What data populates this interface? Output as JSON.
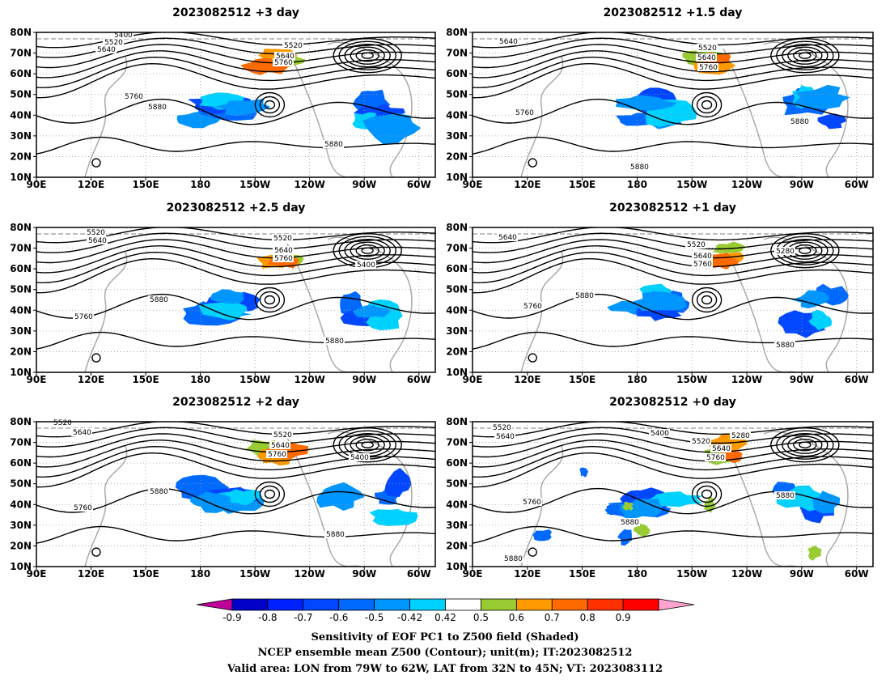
{
  "panels": [
    {
      "title": "2023082512  +3 day",
      "labels": [
        [
          "5400",
          152,
          45
        ],
        [
          "5520",
          140,
          54
        ],
        [
          "5640",
          131,
          63
        ],
        [
          "5520",
          362,
          58
        ],
        [
          "5640",
          352,
          71
        ],
        [
          "5760",
          350,
          79
        ],
        [
          "5760",
          165,
          121
        ],
        [
          "5880",
          194,
          134
        ],
        [
          "5880",
          412,
          180
        ]
      ]
    },
    {
      "title": "2023082512  +1.5 day",
      "labels": [
        [
          "5640",
          628,
          53
        ],
        [
          "5520",
          874,
          61
        ],
        [
          "5640",
          873,
          73
        ],
        [
          "5760",
          875,
          85
        ],
        [
          "5760",
          648,
          141
        ],
        [
          "5880",
          988,
          152
        ],
        [
          "5880",
          790,
          208
        ]
      ]
    },
    {
      "title": "2023082512  +2.5 day",
      "labels": [
        [
          "5520",
          118,
          289
        ],
        [
          "5640",
          120,
          299
        ],
        [
          "5520",
          349,
          296
        ],
        [
          "5640",
          350,
          311
        ],
        [
          "5760",
          350,
          321
        ],
        [
          "5400",
          452,
          329
        ],
        [
          "5880",
          196,
          372
        ],
        [
          "5760",
          103,
          393
        ],
        [
          "5880",
          413,
          423
        ]
      ]
    },
    {
      "title": "2023082512  +1 day",
      "labels": [
        [
          "5640",
          627,
          295
        ],
        [
          "5520",
          860,
          304
        ],
        [
          "5640",
          868,
          318
        ],
        [
          "5760",
          868,
          328
        ],
        [
          "5280",
          970,
          312
        ],
        [
          "5880",
          722,
          367
        ],
        [
          "5760",
          658,
          380
        ],
        [
          "5880",
          970,
          428
        ]
      ]
    },
    {
      "title": "2023082512  +2 day",
      "labels": [
        [
          "5520",
          77,
          524
        ],
        [
          "5640",
          101,
          536
        ],
        [
          "5520",
          349,
          539
        ],
        [
          "5640",
          346,
          552
        ],
        [
          "5760",
          342,
          563
        ],
        [
          "5400",
          444,
          567
        ],
        [
          "5880",
          196,
          609
        ],
        [
          "5760",
          102,
          629
        ],
        [
          "5880",
          414,
          662
        ]
      ]
    },
    {
      "title": "2023082512  +0 day",
      "labels": [
        [
          "5520",
          620,
          530
        ],
        [
          "5640",
          624,
          541
        ],
        [
          "5400",
          815,
          537
        ],
        [
          "5520",
          866,
          547
        ],
        [
          "5640",
          891,
          556
        ],
        [
          "5280",
          915,
          540
        ],
        [
          "5760",
          884,
          567
        ],
        [
          "5880",
          970,
          614
        ],
        [
          "5760",
          657,
          622
        ],
        [
          "5880",
          778,
          647
        ],
        [
          "5880",
          634,
          692
        ]
      ]
    }
  ],
  "lat_labels": [
    "80N",
    "70N",
    "60N",
    "50N",
    "40N",
    "30N",
    "20N",
    "10N"
  ],
  "lon_labels": [
    "90E",
    "120E",
    "150E",
    "180",
    "150W",
    "120W",
    "90W",
    "60W"
  ],
  "colorbar": {
    "ticks": [
      "-0.9",
      "-0.8",
      "-0.7",
      "-0.6",
      "-0.5",
      "-0.42",
      "0.42",
      "0.5",
      "0.6",
      "0.7",
      "0.8",
      "0.9"
    ],
    "colors": [
      "#c0009b",
      "#0000c8",
      "#0021ff",
      "#0047ff",
      "#006aff",
      "#0096ff",
      "#00d2ff",
      "#ffffff",
      "#99cc33",
      "#ff9900",
      "#ff6a00",
      "#ff3000",
      "#ff0000",
      "#ffa3d0"
    ]
  },
  "caption": {
    "line1": "Sensitivity of EOF PC1 to Z500 field (Shaded)",
    "line2": "NCEP ensemble mean Z500 (Contour); unit(m); IT:2023082512",
    "line3": "Valid area: LON from 79W to 62W, LAT from 32N to 45N; VT: 2023083112"
  },
  "icons": [
    "contour-map",
    "color-key"
  ]
}
